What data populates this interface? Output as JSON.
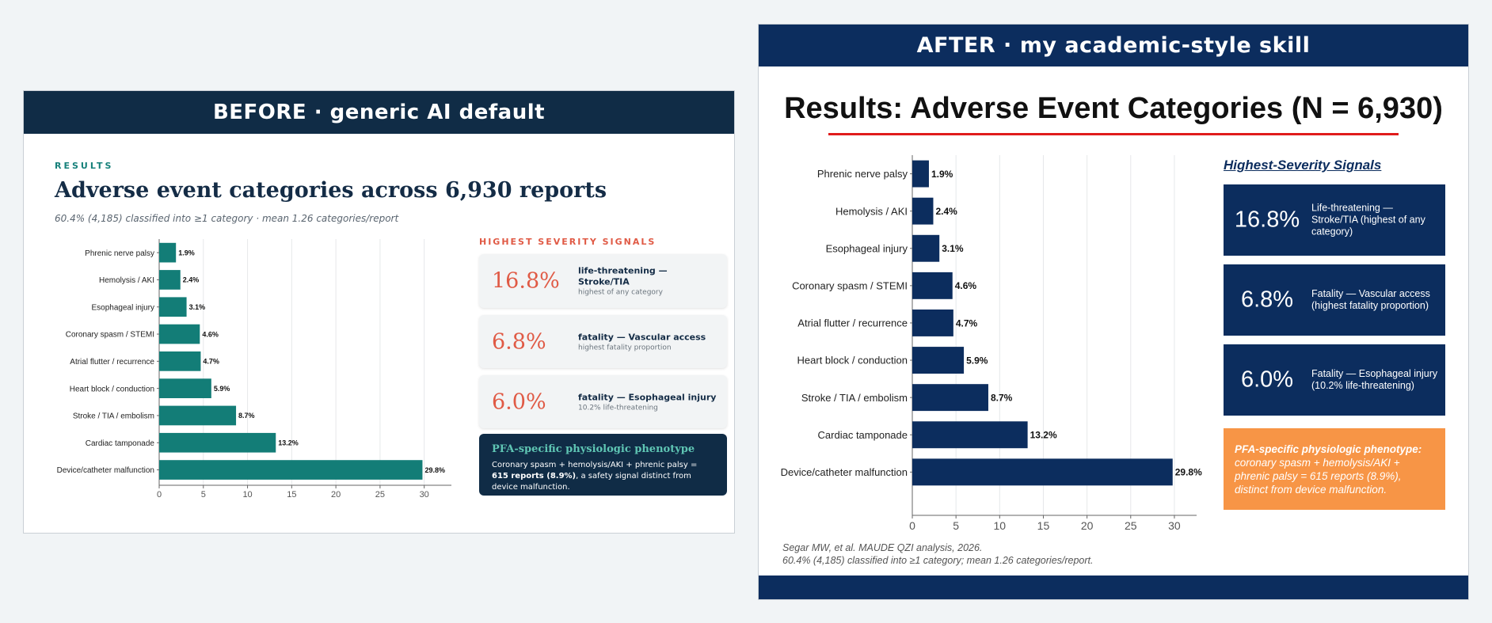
{
  "before": {
    "header": "BEFORE  ·  generic AI default",
    "eyebrow": "RESULTS",
    "title": "Adverse event categories across 6,930 reports",
    "subtitle": "60.4% (4,185) classified into ≥1 category · mean 1.26 categories/report",
    "signals_title": "HIGHEST SEVERITY SIGNALS",
    "cards": [
      {
        "value": "16.8%",
        "main": "life-threatening — Stroke/TIA",
        "sub": "highest of any category"
      },
      {
        "value": "6.8%",
        "main": "fatality — Vascular access",
        "sub": "highest fatality proportion"
      },
      {
        "value": "6.0%",
        "main": "fatality — Esophageal injury",
        "sub": "10.2% life-threatening"
      }
    ],
    "pfa": {
      "title": "PFA-specific physiologic phenotype",
      "body_pre": "Coronary spasm + hemolysis/AKI + phrenic palsy = ",
      "body_bold": "615 reports (8.9%)",
      "body_post": ", a safety signal distinct from device malfunction."
    }
  },
  "after": {
    "header": "AFTER  ·  my academic-style skill",
    "title": "Results: Adverse Event Categories (N = 6,930)",
    "signals_title": "Highest-Severity Signals",
    "cards": [
      {
        "value": "16.8%",
        "text": "Life-threatening — Stroke/TIA (highest of any category)"
      },
      {
        "value": "6.8%",
        "text": "Fatality — Vascular access (highest fatality proportion)"
      },
      {
        "value": "6.0%",
        "text": "Fatality — Esophageal injury (10.2% life-threatening)"
      }
    ],
    "pfa": {
      "bold": "PFA-specific physiologic phenotype:",
      "body": "coronary spasm + hemolysis/AKI + phrenic palsy = 615 reports (8.9%), distinct from device malfunction."
    },
    "footnote1": "Segar MW, et al. MAUDE QZI analysis, 2026.",
    "footnote2": "60.4% (4,185) classified into ≥1 category; mean 1.26 categories/report."
  },
  "chart_data": [
    {
      "type": "bar",
      "orientation": "horizontal",
      "categories": [
        "Phrenic nerve palsy",
        "Hemolysis / AKI",
        "Esophageal injury",
        "Coronary spasm / STEMI",
        "Atrial flutter / recurrence",
        "Heart block / conduction",
        "Stroke / TIA / embolism",
        "Cardiac tamponade",
        "Device/catheter malfunction"
      ],
      "values": [
        1.9,
        2.4,
        3.1,
        4.6,
        4.7,
        5.9,
        8.7,
        13.2,
        29.8
      ],
      "labels": [
        "1.9%",
        "2.4%",
        "3.1%",
        "4.6%",
        "4.7%",
        "5.9%",
        "8.7%",
        "13.2%",
        "29.8%"
      ],
      "ticks": [
        "0",
        "5",
        "10",
        "15",
        "20",
        "25",
        "30"
      ],
      "xlim": [
        0,
        32
      ],
      "grid": true,
      "color": "#137d77"
    },
    {
      "type": "bar",
      "orientation": "horizontal",
      "categories": [
        "Phrenic nerve palsy",
        "Hemolysis / AKI",
        "Esophageal injury",
        "Coronary spasm / STEMI",
        "Atrial flutter / recurrence",
        "Heart block / conduction",
        "Stroke / TIA / embolism",
        "Cardiac tamponade",
        "Device/catheter malfunction"
      ],
      "values": [
        1.9,
        2.4,
        3.1,
        4.6,
        4.7,
        5.9,
        8.7,
        13.2,
        29.8
      ],
      "labels": [
        "1.9%",
        "2.4%",
        "3.1%",
        "4.6%",
        "4.7%",
        "5.9%",
        "8.7%",
        "13.2%",
        "29.8%"
      ],
      "ticks": [
        "0",
        "5",
        "10",
        "15",
        "20",
        "25",
        "30"
      ],
      "xlim": [
        0,
        32
      ],
      "grid": true,
      "color": "#0c2d5e"
    }
  ]
}
